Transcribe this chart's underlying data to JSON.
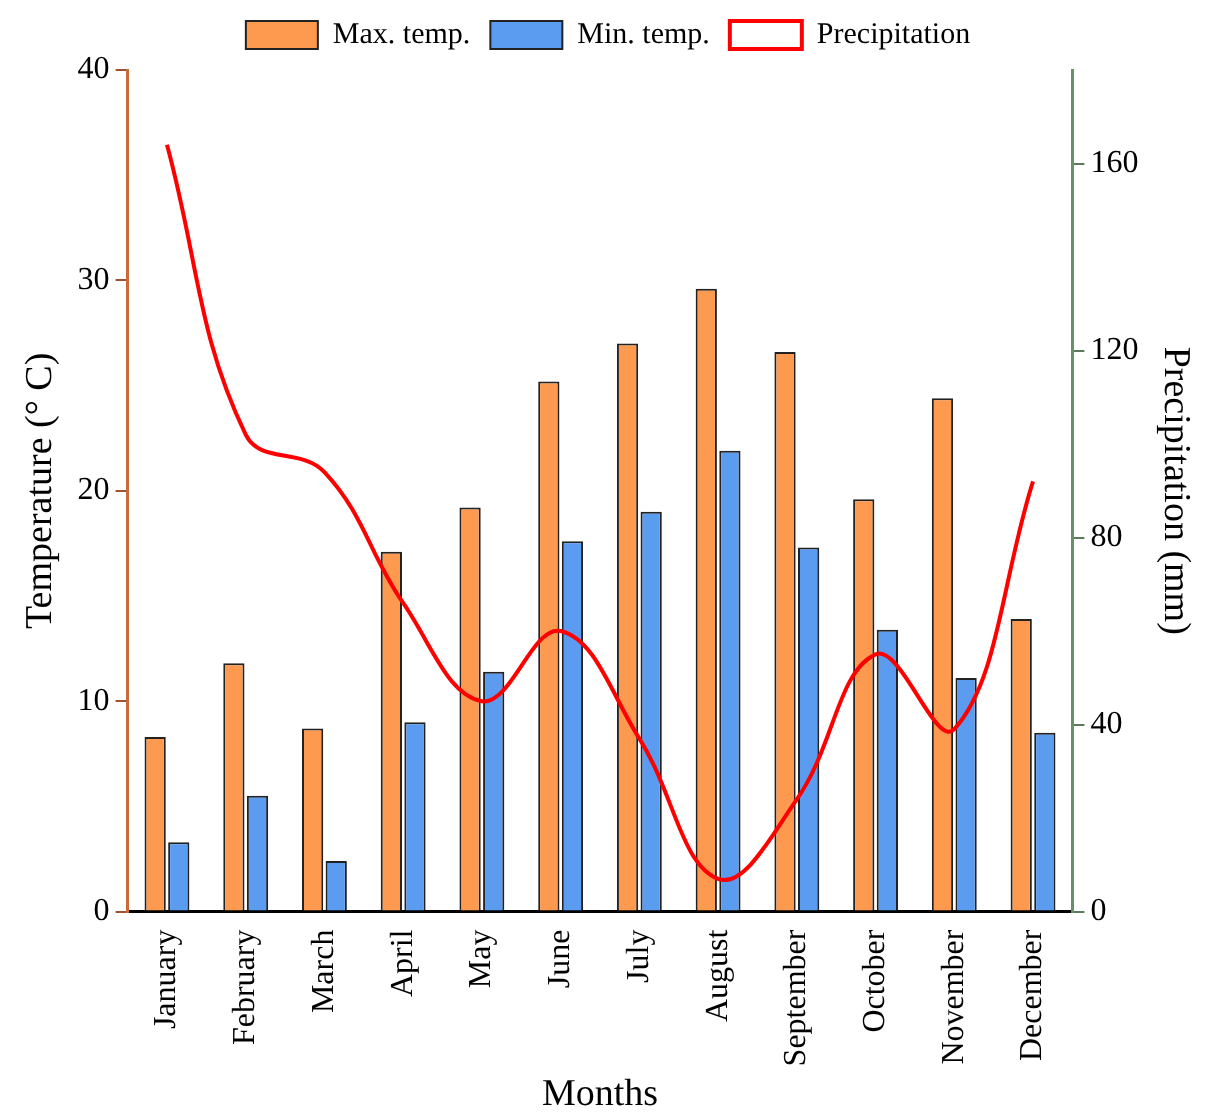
{
  "chart_data": {
    "type": "bar",
    "xlabel": "Months",
    "ylabel": "Temperature (° C)",
    "y2label": "Precipitation (mm)",
    "categories": [
      "January",
      "February",
      "March",
      "April",
      "May",
      "June",
      "July",
      "August",
      "September",
      "October",
      "November",
      "December"
    ],
    "series": [
      {
        "name": "Max. temp.",
        "color": "#fd9a4f",
        "values": [
          8.3,
          11.8,
          8.7,
          17.1,
          19.2,
          25.2,
          27.0,
          29.6,
          26.6,
          19.6,
          24.4,
          13.9
        ]
      },
      {
        "name": "Min. temp.",
        "color": "#5b9bf0",
        "values": [
          3.3,
          5.5,
          2.4,
          9.0,
          11.4,
          17.6,
          19.0,
          21.9,
          17.3,
          13.4,
          11.1,
          8.5
        ]
      },
      {
        "name": "Precipitation",
        "type": "line",
        "axis": "y2",
        "color": "#ff0000",
        "marker": "none",
        "values": [
          164,
          102,
          94,
          66,
          45,
          60,
          37,
          7,
          24,
          55,
          39,
          92
        ]
      }
    ],
    "ylim": [
      0,
      40
    ],
    "yticks": [
      0,
      10,
      20,
      30,
      40
    ],
    "y2lim": [
      0,
      180
    ],
    "y2ticks": [
      0,
      40,
      80,
      120,
      160
    ],
    "grid": false,
    "legend": "top"
  }
}
